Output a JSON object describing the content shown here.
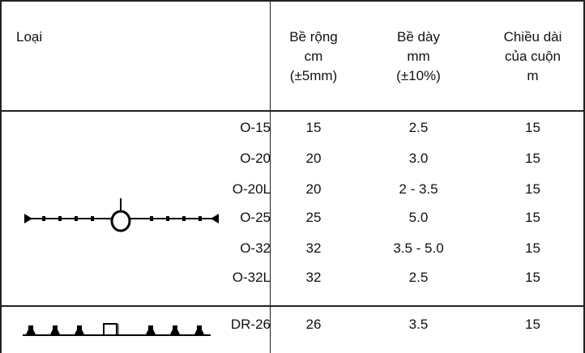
{
  "header": {
    "type_label": "Loại",
    "width": [
      "Bề rộng",
      "cm",
      "(±5mm)"
    ],
    "thickness": [
      "Bề dày",
      "mm",
      "(±10%)"
    ],
    "length": [
      "Chiều dài",
      "của cuộn",
      "m"
    ]
  },
  "rows": [
    {
      "code": "O-15",
      "width": "15",
      "thickness": "2.5",
      "length": "15"
    },
    {
      "code": "O-20",
      "width": "20",
      "thickness": "3.0",
      "length": "15"
    },
    {
      "code": "O-20L",
      "width": "20",
      "thickness": "2 - 3.5",
      "length": "15"
    },
    {
      "code": "O-25",
      "width": "25",
      "thickness": "5.0",
      "length": "15"
    },
    {
      "code": "O-32",
      "width": "32",
      "thickness": "3.5 - 5.0",
      "length": "15"
    },
    {
      "code": "O-32L",
      "width": "32",
      "thickness": "2.5",
      "length": "15"
    }
  ],
  "dr_row": {
    "code": "DR-26",
    "width": "26",
    "thickness": "3.5",
    "length": "15"
  },
  "icons": {
    "o_profile": "o-type-waterstop-profile-icon",
    "dr_profile": "dr-type-waterstop-profile-icon"
  }
}
